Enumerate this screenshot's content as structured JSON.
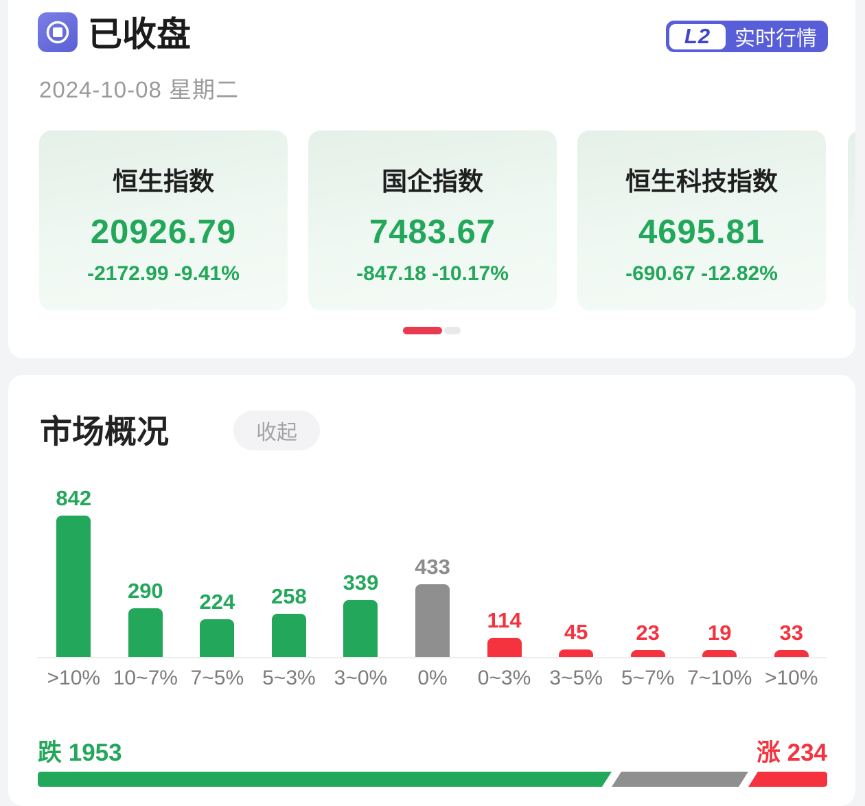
{
  "header": {
    "status_title": "已收盘",
    "date": "2024-10-08 星期二",
    "l2_label": "L2",
    "l2_text": "实时行情"
  },
  "indices": [
    {
      "name": "恒生指数",
      "value": "20926.79",
      "change": "-2172.99 -9.41%"
    },
    {
      "name": "国企指数",
      "value": "7483.67",
      "change": "-847.18 -10.17%"
    },
    {
      "name": "恒生科技指数",
      "value": "4695.81",
      "change": "-690.67 -12.82%"
    }
  ],
  "carousel": {
    "pages": 2,
    "active_page": 1
  },
  "market_overview": {
    "title": "市场概况",
    "collapse_label": "收起",
    "down_label": "跌 1953",
    "up_label": "涨 234",
    "down_count": 1953,
    "flat_count": 433,
    "up_count": 234
  },
  "chart_data": {
    "type": "bar",
    "categories": [
      ">10%",
      "10~7%",
      "7~5%",
      "5~3%",
      "3~0%",
      "0%",
      "0~3%",
      "3~5%",
      "5~7%",
      "7~10%",
      ">10%"
    ],
    "values": [
      842,
      290,
      224,
      258,
      339,
      433,
      114,
      45,
      23,
      19,
      33
    ],
    "series_colors": [
      "green",
      "green",
      "green",
      "green",
      "green",
      "gray",
      "red",
      "red",
      "red",
      "red",
      "red"
    ],
    "title": "",
    "xlabel": "",
    "ylabel": "",
    "ylim": [
      0,
      842
    ],
    "grid": false,
    "legend": false
  },
  "colors": {
    "green": "#23A75A",
    "red": "#F4333F",
    "gray_bar": "#8F8F8F",
    "purple": "#585DD8",
    "dot_red": "#EA3A50"
  }
}
